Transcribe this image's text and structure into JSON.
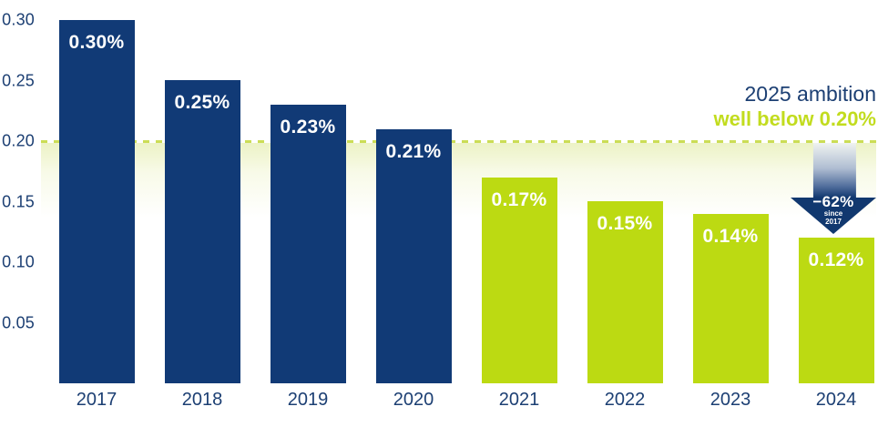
{
  "chart_data": {
    "type": "bar",
    "title": "",
    "xlabel": "",
    "ylabel": "",
    "categories": [
      "2017",
      "2018",
      "2019",
      "2020",
      "2021",
      "2022",
      "2023",
      "2024"
    ],
    "values": [
      0.3,
      0.25,
      0.23,
      0.21,
      0.17,
      0.15,
      0.14,
      0.12
    ],
    "bar_labels": [
      "0.30%",
      "0.25%",
      "0.23%",
      "0.21%",
      "0.17%",
      "0.15%",
      "0.14%",
      "0.12%"
    ],
    "bar_colors": [
      "#113a76",
      "#113a76",
      "#113a76",
      "#113a76",
      "#bcda12",
      "#bcda12",
      "#bcda12",
      "#bcda12"
    ],
    "bar_label_color": "#ffffff",
    "ylim": [
      0,
      0.315
    ],
    "grid": false,
    "legend": null,
    "y_axis": {
      "color": "#1c3f73",
      "ticks": [
        {
          "label": "0.30",
          "value": 0.3
        },
        {
          "label": "0.25",
          "value": 0.25
        },
        {
          "label": "0.20",
          "value": 0.2
        },
        {
          "label": "0.15",
          "value": 0.15
        },
        {
          "label": "0.10",
          "value": 0.1
        },
        {
          "label": "0.05",
          "value": 0.05
        }
      ]
    },
    "target_line": {
      "value": 0.2,
      "style": "dashed",
      "color": "#cbdd55"
    },
    "annotations": {
      "ambition": {
        "line1": "2025 ambition",
        "line2": "well below 0.20%",
        "line1_color": "#1c3f73",
        "line2_color": "#c2dc1e",
        "position": "top-right"
      },
      "decrease_arrow": {
        "label": "−62%",
        "sub_line1": "since",
        "sub_line2": "2017",
        "color": "#11386f",
        "points_to": "2024"
      }
    }
  }
}
